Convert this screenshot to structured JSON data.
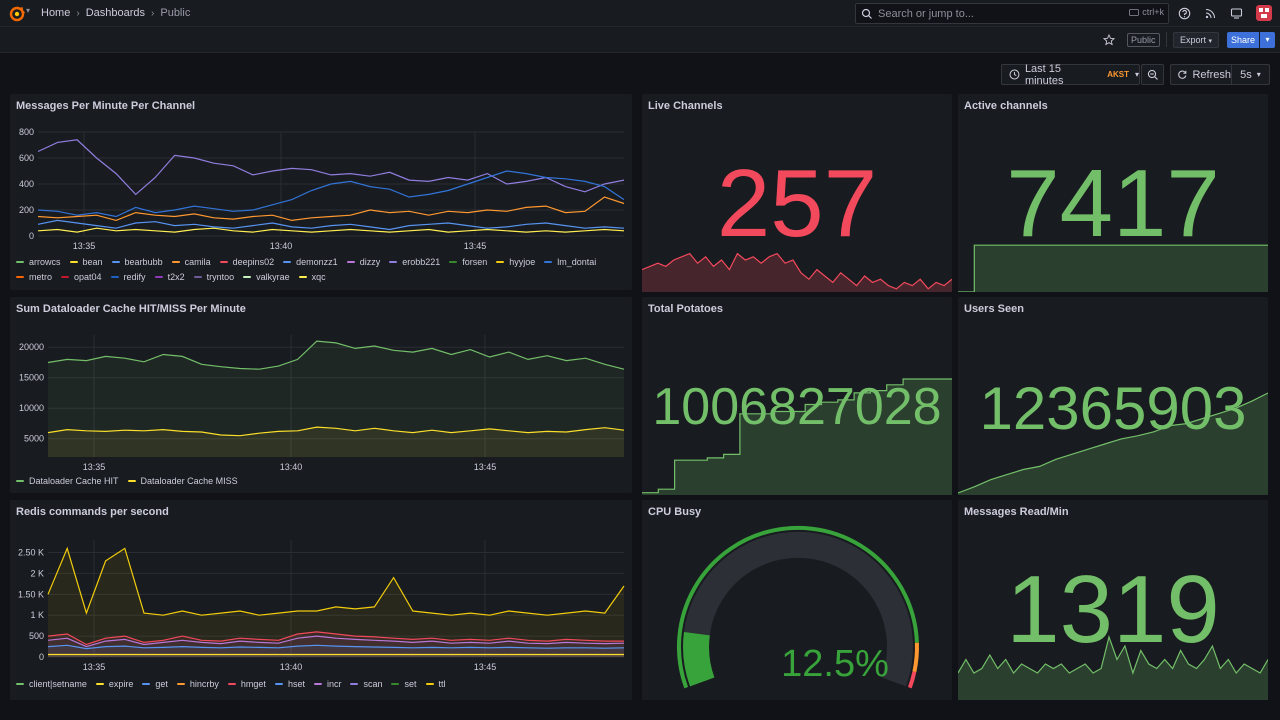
{
  "breadcrumbs": [
    "Home",
    "Dashboards",
    "Public"
  ],
  "search": {
    "placeholder": "Search or jump to...",
    "shortcut": "ctrl+k"
  },
  "toolbar": {
    "public_tag": "Public",
    "export_label": "Export",
    "share_label": "Share"
  },
  "timepicker": {
    "range": "Last 15 minutes",
    "tz": "AKST",
    "refresh_label": "Refresh",
    "interval": "5s"
  },
  "icons": {
    "logo": "grafana-logo-icon",
    "search": "search-icon",
    "help": "help-icon",
    "news": "rss-icon",
    "kiosk": "monitor-icon",
    "star": "star-icon",
    "clock": "clock-icon",
    "zoom": "zoom-out-icon",
    "refresh": "refresh-icon"
  },
  "colors": {
    "green": "#73bf69",
    "red": "#f2495c",
    "accent": "#3d71d9",
    "orange": "#ff9830"
  },
  "panels": {
    "messages": {
      "title": "Messages Per Minute Per Channel",
      "legend": [
        {
          "name": "arrowcs",
          "color": "#73bf69"
        },
        {
          "name": "bean",
          "color": "#fade2a"
        },
        {
          "name": "bearbubb",
          "color": "#5794f2"
        },
        {
          "name": "camila",
          "color": "#ff9830"
        },
        {
          "name": "deepins02",
          "color": "#f2495c"
        },
        {
          "name": "demonzz1",
          "color": "#5794f2"
        },
        {
          "name": "dizzy",
          "color": "#b877d9"
        },
        {
          "name": "erobb221",
          "color": "#8f7ee0"
        },
        {
          "name": "forsen",
          "color": "#37872d"
        },
        {
          "name": "hyyjoe",
          "color": "#f2cc0c"
        },
        {
          "name": "lm_dontai",
          "color": "#3274d9"
        },
        {
          "name": "metro",
          "color": "#fa6400"
        },
        {
          "name": "opat04",
          "color": "#c4162a"
        },
        {
          "name": "redify",
          "color": "#1f60c4"
        },
        {
          "name": "t2x2",
          "color": "#8f3bb8"
        },
        {
          "name": "tryntoo",
          "color": "#6e5c9a"
        },
        {
          "name": "valkyrae",
          "color": "#c8f2c2"
        },
        {
          "name": "xqc",
          "color": "#ffee52"
        }
      ]
    },
    "cache": {
      "title": "Sum Dataloader Cache HIT/MISS Per Minute",
      "legend": [
        {
          "name": "Dataloader Cache HIT",
          "color": "#73bf69"
        },
        {
          "name": "Dataloader Cache MISS",
          "color": "#fade2a"
        }
      ]
    },
    "redis": {
      "title": "Redis commands per second",
      "legend": [
        {
          "name": "client|setname",
          "color": "#73bf69"
        },
        {
          "name": "expire",
          "color": "#fade2a"
        },
        {
          "name": "get",
          "color": "#5794f2"
        },
        {
          "name": "hincrby",
          "color": "#ff9830"
        },
        {
          "name": "hmget",
          "color": "#f2495c"
        },
        {
          "name": "hset",
          "color": "#5794f2"
        },
        {
          "name": "incr",
          "color": "#b877d9"
        },
        {
          "name": "scan",
          "color": "#8f7ee0"
        },
        {
          "name": "set",
          "color": "#37872d"
        },
        {
          "name": "ttl",
          "color": "#f2cc0c"
        }
      ]
    },
    "live_channels": {
      "title": "Live Channels",
      "value": "257",
      "color": "#f2495c"
    },
    "active_channels": {
      "title": "Active channels",
      "value": "7417",
      "color": "#73bf69"
    },
    "total_potatoes": {
      "title": "Total Potatoes",
      "value": "1006827028",
      "color": "#73bf69"
    },
    "users_seen": {
      "title": "Users Seen",
      "value": "12365903",
      "color": "#73bf69"
    },
    "cpu_busy": {
      "title": "CPU Busy",
      "value": "12.5%",
      "color": "#37a33a",
      "fraction": 0.125
    },
    "messages_read": {
      "title": "Messages Read/Min",
      "value": "1319",
      "color": "#73bf69"
    }
  },
  "chart_data": [
    {
      "type": "line",
      "title": "Messages Per Minute Per Channel",
      "x_ticks": [
        "13:35",
        "13:40",
        "13:45"
      ],
      "y_ticks": [
        "0",
        "200",
        "400",
        "600",
        "800"
      ],
      "ylim": [
        0,
        800
      ],
      "series": [
        {
          "name": "erobb221",
          "values": [
            650,
            720,
            740,
            600,
            480,
            320,
            450,
            620,
            600,
            560,
            540,
            470,
            500,
            520,
            510,
            470,
            480,
            460,
            490,
            430,
            420,
            450,
            430,
            480,
            400,
            420,
            450,
            380,
            340,
            400,
            430
          ]
        },
        {
          "name": "lm_dontai",
          "values": [
            200,
            190,
            160,
            180,
            150,
            220,
            180,
            200,
            230,
            210,
            190,
            200,
            240,
            280,
            350,
            400,
            420,
            380,
            360,
            300,
            320,
            350,
            400,
            450,
            500,
            480,
            450,
            440,
            420,
            380,
            280
          ]
        },
        {
          "name": "camila",
          "values": [
            150,
            140,
            150,
            160,
            120,
            180,
            160,
            150,
            170,
            140,
            130,
            150,
            160,
            120,
            140,
            150,
            160,
            200,
            180,
            190,
            160,
            190,
            180,
            200,
            190,
            220,
            230,
            180,
            190,
            300,
            250
          ]
        },
        {
          "name": "bearbubb",
          "values": [
            90,
            120,
            100,
            80,
            60,
            100,
            110,
            80,
            90,
            70,
            60,
            80,
            100,
            70,
            60,
            80,
            90,
            70,
            50,
            80,
            90,
            100,
            80,
            60,
            70,
            90,
            100,
            80,
            60,
            70,
            60
          ]
        },
        {
          "name": "xqc",
          "values": [
            40,
            50,
            30,
            60,
            40,
            50,
            40,
            30,
            50,
            60,
            40,
            30,
            50,
            40,
            30,
            40,
            50,
            40,
            30,
            40,
            50,
            30,
            40,
            50,
            40,
            30,
            40,
            30,
            40,
            50,
            40
          ]
        }
      ]
    },
    {
      "type": "area",
      "title": "Sum Dataloader Cache HIT/MISS Per Minute",
      "x_ticks": [
        "13:35",
        "13:40",
        "13:45"
      ],
      "y_ticks": [
        "5000",
        "10000",
        "15000",
        "20000"
      ],
      "ylim": [
        2000,
        22000
      ],
      "series": [
        {
          "name": "Dataloader Cache HIT",
          "values": [
            17500,
            18000,
            17800,
            18500,
            18200,
            17600,
            18800,
            18500,
            17200,
            16800,
            16500,
            16400,
            16900,
            18000,
            21000,
            20700,
            19800,
            20200,
            19500,
            19200,
            19800,
            18800,
            19600,
            18400,
            19200,
            18000,
            18600,
            17800,
            18200,
            17200,
            16400
          ]
        },
        {
          "name": "Dataloader Cache MISS",
          "values": [
            6000,
            6500,
            6300,
            6200,
            6400,
            6300,
            6500,
            6200,
            6100,
            5600,
            5500,
            5900,
            6200,
            6300,
            6900,
            6700,
            6300,
            6700,
            6300,
            6000,
            6400,
            6000,
            6300,
            6600,
            6300,
            6000,
            6200,
            6100,
            6500,
            6800,
            6400
          ]
        }
      ]
    },
    {
      "type": "area",
      "title": "Redis commands per second",
      "x_ticks": [
        "13:35",
        "13:40",
        "13:45"
      ],
      "y_ticks": [
        "0",
        "500",
        "1 K",
        "1.50 K",
        "2 K",
        "2.50 K"
      ],
      "ylim": [
        0,
        2800
      ],
      "series": [
        {
          "name": "ttl",
          "values": [
            1500,
            2600,
            1050,
            2300,
            2600,
            1050,
            1000,
            1100,
            1000,
            1050,
            1100,
            1000,
            1050,
            1100,
            1100,
            1200,
            1150,
            1200,
            1900,
            1100,
            1050,
            1000,
            1050,
            1000,
            1100,
            1050,
            1000,
            1050,
            1100,
            1050,
            1700
          ]
        },
        {
          "name": "hmget",
          "values": [
            500,
            550,
            300,
            450,
            500,
            350,
            400,
            500,
            400,
            380,
            450,
            420,
            400,
            550,
            600,
            550,
            500,
            480,
            450,
            420,
            450,
            400,
            420,
            400,
            450,
            400,
            380,
            420,
            400,
            380,
            380
          ]
        },
        {
          "name": "incr",
          "values": [
            400,
            450,
            250,
            380,
            420,
            300,
            350,
            400,
            350,
            320,
            380,
            350,
            330,
            450,
            500,
            450,
            420,
            400,
            380,
            350,
            380,
            330,
            350,
            330,
            380,
            330,
            320,
            350,
            330,
            320,
            330
          ]
        },
        {
          "name": "get",
          "values": [
            250,
            280,
            200,
            250,
            260,
            220,
            230,
            250,
            230,
            220,
            240,
            230,
            220,
            260,
            280,
            260,
            250,
            240,
            230,
            220,
            230,
            220,
            230,
            220,
            230,
            220,
            210,
            220,
            220,
            210,
            220
          ]
        },
        {
          "name": "expire",
          "values": [
            60,
            60,
            60,
            60,
            60,
            60,
            60,
            60,
            60,
            60,
            60,
            60,
            60,
            60,
            60,
            60,
            60,
            60,
            60,
            60,
            60,
            60,
            60,
            60,
            60,
            60,
            60,
            60,
            60,
            60,
            60
          ]
        }
      ]
    }
  ],
  "sparklines": {
    "live_channels": [
      0.35,
      0.4,
      0.45,
      0.4,
      0.5,
      0.55,
      0.6,
      0.45,
      0.55,
      0.4,
      0.5,
      0.35,
      0.6,
      0.5,
      0.55,
      0.45,
      0.55,
      0.6,
      0.45,
      0.5,
      0.3,
      0.2,
      0.35,
      0.25,
      0.15,
      0.3,
      0.2,
      0.1,
      0.25,
      0.15,
      0.2,
      0.1,
      0.05,
      0.15,
      0.1,
      0.2,
      0.05,
      0.15,
      0.1,
      0.2
    ],
    "active_channels": [
      0,
      0.9,
      0.9,
      0.9,
      0.9,
      0.9,
      0.9,
      0.9,
      0.9,
      0.9,
      0.9,
      0.9,
      0.9,
      0.9,
      0.9,
      0.9,
      0.9,
      0.9,
      0.9,
      0.9
    ],
    "total_potatoes": [
      0.02,
      0.05,
      0.3,
      0.3,
      0.32,
      0.35,
      0.7,
      0.7,
      0.72,
      0.72,
      0.78,
      0.8,
      0.82,
      0.88,
      0.9,
      0.95,
      1.0,
      1.0,
      1.0,
      1.0
    ],
    "users_seen": [
      0.02,
      0.08,
      0.15,
      0.2,
      0.25,
      0.28,
      0.35,
      0.4,
      0.45,
      0.5,
      0.55,
      0.58,
      0.62,
      0.68,
      0.7,
      0.75,
      0.8,
      0.85,
      0.92,
      1.0
    ],
    "messages_read": [
      0.3,
      0.45,
      0.3,
      0.35,
      0.5,
      0.35,
      0.45,
      0.3,
      0.4,
      0.35,
      0.3,
      0.4,
      0.35,
      0.4,
      0.3,
      0.35,
      0.4,
      0.3,
      0.35,
      0.7,
      0.45,
      0.6,
      0.3,
      0.55,
      0.4,
      0.35,
      0.45,
      0.35,
      0.55,
      0.4,
      0.35,
      0.45,
      0.6,
      0.35,
      0.45,
      0.3,
      0.4,
      0.35,
      0.3,
      0.45
    ]
  }
}
